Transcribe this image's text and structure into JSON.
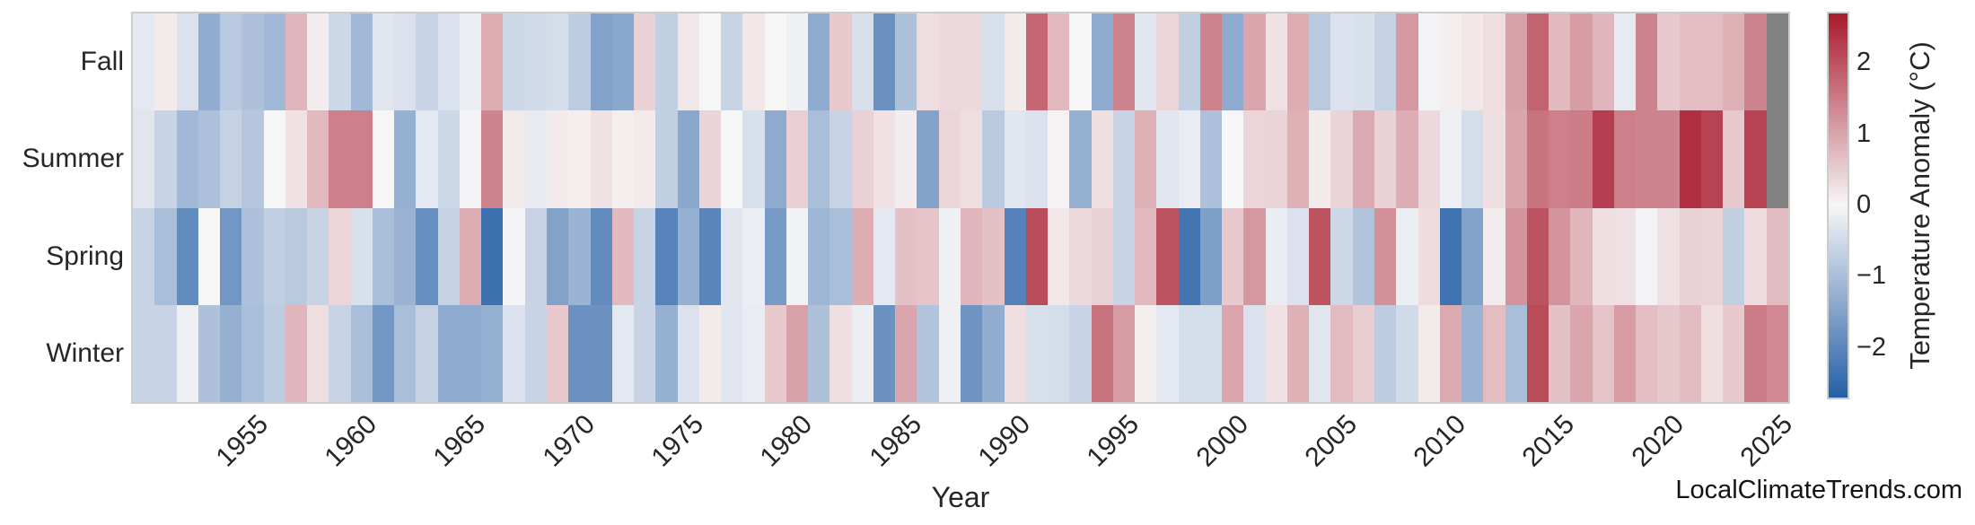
{
  "axes": {
    "x_label": "Year",
    "x_tick_years": [
      1955,
      1960,
      1965,
      1970,
      1975,
      1980,
      1985,
      1990,
      1995,
      2000,
      2005,
      2010,
      2015,
      2020,
      2025
    ],
    "row_labels": [
      "Fall",
      "Summer",
      "Spring",
      "Winter"
    ]
  },
  "colorbar": {
    "label": "Temperature Anomaly (°C)",
    "tick_values": [
      2,
      1,
      0,
      -1,
      -2
    ],
    "tick_labels": [
      "2",
      "1",
      "0",
      "−1",
      "−2"
    ],
    "vmin": -2.7,
    "vmax": 2.7,
    "negative_end_color": "#255fa6",
    "zero_color": "#f7f6f7",
    "positive_end_color": "#a81a2c",
    "missing_color": "#828282"
  },
  "watermark": "LocalClimateTrends.com",
  "chart_data": {
    "type": "heatmap",
    "title": "",
    "xlabel": "Year",
    "ylabel": "",
    "value_unit": "°C (temperature anomaly)",
    "x": [
      1950,
      1951,
      1952,
      1953,
      1954,
      1955,
      1956,
      1957,
      1958,
      1959,
      1960,
      1961,
      1962,
      1963,
      1964,
      1965,
      1966,
      1967,
      1968,
      1969,
      1970,
      1971,
      1972,
      1973,
      1974,
      1975,
      1976,
      1977,
      1978,
      1979,
      1980,
      1981,
      1982,
      1983,
      1984,
      1985,
      1986,
      1987,
      1988,
      1989,
      1990,
      1991,
      1992,
      1993,
      1994,
      1995,
      1996,
      1997,
      1998,
      1999,
      2000,
      2001,
      2002,
      2003,
      2004,
      2005,
      2006,
      2007,
      2008,
      2009,
      2010,
      2011,
      2012,
      2013,
      2014,
      2015,
      2016,
      2017,
      2018,
      2019,
      2020,
      2021,
      2022,
      2023,
      2024,
      2025
    ],
    "rows": [
      "Fall",
      "Summer",
      "Spring",
      "Winter"
    ],
    "series": [
      {
        "name": "Fall",
        "values": [
          -0.25,
          0.15,
          -0.35,
          -1.3,
          -0.8,
          -0.95,
          -1.1,
          0.8,
          0.12,
          -0.55,
          -1.1,
          -0.3,
          -0.35,
          -0.6,
          -0.35,
          -0.15,
          0.9,
          -0.55,
          -0.5,
          -0.45,
          -0.75,
          -1.5,
          -1.4,
          0.45,
          -0.7,
          0.2,
          0.0,
          -0.6,
          0.2,
          0.0,
          -0.1,
          -1.35,
          0.55,
          -0.4,
          -1.8,
          -0.95,
          0.3,
          0.35,
          0.35,
          -0.4,
          0.15,
          1.75,
          0.75,
          0.0,
          -1.35,
          1.4,
          -0.3,
          0.4,
          -0.7,
          1.4,
          -1.35,
          1.0,
          0.25,
          0.9,
          -0.8,
          -0.35,
          -0.4,
          -0.65,
          1.15,
          -0.05,
          0.1,
          0.2,
          0.3,
          1.05,
          1.8,
          0.75,
          1.1,
          0.8,
          -0.2,
          1.4,
          0.55,
          0.7,
          0.7,
          0.85,
          1.4,
          null
        ]
      },
      {
        "name": "Summer",
        "values": [
          -0.3,
          -0.6,
          -1.1,
          -0.95,
          -0.65,
          -0.85,
          0.0,
          0.25,
          0.75,
          1.45,
          1.45,
          0.0,
          -1.25,
          -0.25,
          -0.55,
          -0.05,
          1.4,
          0.15,
          -0.2,
          0.15,
          0.1,
          0.25,
          0.1,
          0.15,
          -0.7,
          -1.4,
          0.42,
          0.0,
          -0.4,
          -1.35,
          0.48,
          -1.0,
          -0.6,
          0.45,
          0.25,
          0.12,
          -1.5,
          0.4,
          0.3,
          -0.8,
          -0.3,
          -0.35,
          0.05,
          -1.25,
          0.3,
          -0.6,
          0.85,
          -0.3,
          -0.18,
          -0.95,
          0.0,
          0.4,
          0.42,
          0.85,
          0.15,
          0.42,
          0.95,
          0.45,
          0.9,
          0.35,
          -0.1,
          -0.45,
          0.28,
          1.0,
          1.6,
          1.45,
          1.5,
          2.25,
          1.45,
          1.4,
          1.4,
          2.45,
          2.2,
          0.55,
          2.2,
          null
        ]
      },
      {
        "name": "Spring",
        "values": [
          -0.6,
          -1.0,
          -1.9,
          0.0,
          -1.7,
          -0.95,
          -0.7,
          -0.8,
          -0.6,
          0.4,
          -0.4,
          -1.0,
          -1.2,
          -1.85,
          -0.65,
          0.9,
          -2.4,
          -0.05,
          -0.6,
          -1.5,
          -1.2,
          -1.9,
          0.75,
          -0.6,
          -2.05,
          -1.25,
          -2.0,
          -0.3,
          -0.15,
          -1.65,
          -0.08,
          -1.15,
          -1.0,
          0.9,
          -0.25,
          0.65,
          0.6,
          -0.1,
          0.8,
          0.65,
          -2.1,
          2.1,
          0.2,
          0.35,
          0.45,
          -0.6,
          0.75,
          2.0,
          -2.3,
          -1.55,
          0.55,
          1.15,
          -0.18,
          -0.35,
          2.0,
          -0.55,
          -0.9,
          1.25,
          -0.15,
          0.32,
          -2.35,
          -1.5,
          0.12,
          1.2,
          2.0,
          1.2,
          0.8,
          0.28,
          0.26,
          -0.05,
          0.25,
          0.45,
          0.42,
          -0.7,
          0.32,
          0.72
        ]
      },
      {
        "name": "Winter",
        "values": [
          -0.6,
          -0.6,
          -0.1,
          -0.95,
          -1.25,
          -1.0,
          -0.75,
          0.8,
          0.3,
          -0.6,
          -1.0,
          -1.7,
          -1.0,
          -0.65,
          -1.35,
          -1.35,
          -1.25,
          -0.35,
          -0.6,
          0.55,
          -1.8,
          -1.8,
          -0.25,
          -0.6,
          -1.25,
          -0.35,
          0.15,
          -0.3,
          -0.18,
          0.55,
          1.05,
          -0.95,
          0.28,
          -0.15,
          -1.8,
          1.0,
          -0.9,
          -0.1,
          -1.75,
          -1.3,
          0.3,
          -0.4,
          -0.45,
          -0.6,
          1.6,
          1.1,
          0.1,
          -0.25,
          -0.45,
          -0.45,
          1.0,
          -0.35,
          0.25,
          0.85,
          -0.3,
          0.72,
          0.5,
          -0.75,
          -0.5,
          0.15,
          0.95,
          -1.2,
          0.7,
          -1.0,
          2.1,
          0.65,
          1.0,
          0.62,
          1.1,
          0.7,
          0.58,
          0.72,
          0.3,
          0.55,
          1.5,
          1.35
        ]
      }
    ],
    "missing_cells": [
      {
        "row": "Fall",
        "x": 2025
      },
      {
        "row": "Summer",
        "x": 2025
      }
    ],
    "colormap": "diverging blue-white-red",
    "legend_position": "right-colorbar",
    "grid": false
  }
}
